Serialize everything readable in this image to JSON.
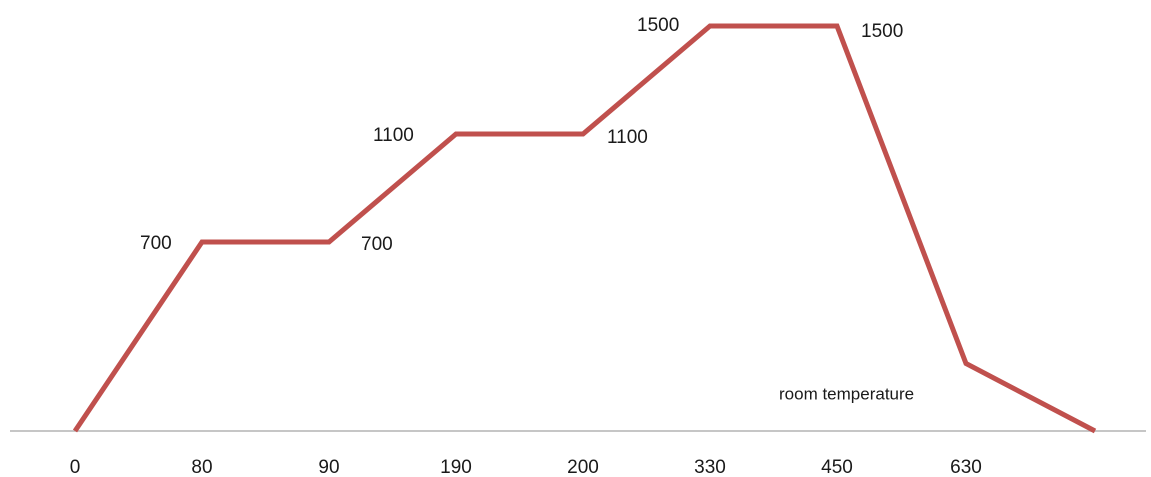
{
  "chart_data": {
    "type": "line",
    "title": "",
    "xlabel": "",
    "ylabel": "",
    "grid": false,
    "legend": "none",
    "categories": [
      "0",
      "80",
      "90",
      "190",
      "200",
      "330",
      "450",
      "630",
      ""
    ],
    "series": [
      {
        "color": "#c0504d",
        "values": [
          0,
          700,
          700,
          1100,
          1100,
          1500,
          1500,
          250,
          0
        ],
        "point_labels": [
          "",
          "700",
          "700",
          "1100",
          "1100",
          "1500",
          "1500",
          "",
          ""
        ]
      }
    ],
    "ylim": [
      0,
      1500
    ],
    "annotations": [
      {
        "text": "room temperature",
        "point_index": 7
      }
    ],
    "axis_color": "#b3b3b3"
  }
}
